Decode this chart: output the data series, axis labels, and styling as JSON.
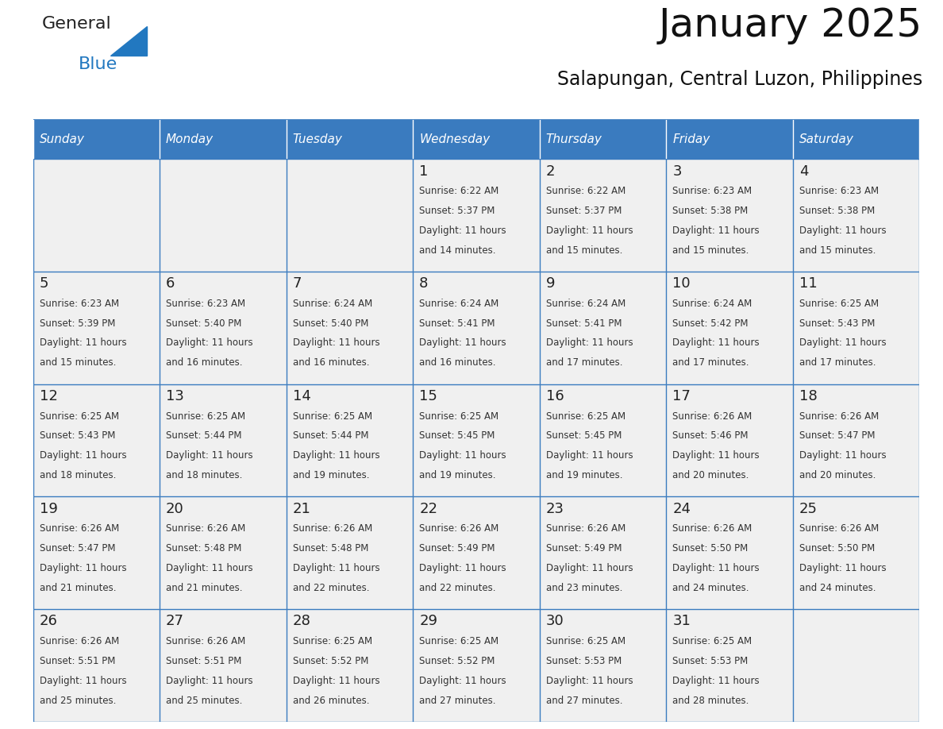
{
  "title": "January 2025",
  "subtitle": "Salapungan, Central Luzon, Philippines",
  "days_of_week": [
    "Sunday",
    "Monday",
    "Tuesday",
    "Wednesday",
    "Thursday",
    "Friday",
    "Saturday"
  ],
  "header_bg": "#3a7bbf",
  "header_text": "#ffffff",
  "cell_bg": "#f0f0f0",
  "cell_border": "#3a7bbf",
  "text_color": "#333333",
  "day_number_color": "#222222",
  "logo_general_color": "#222222",
  "logo_blue_color": "#2278c0",
  "calendar": [
    [
      null,
      null,
      null,
      {
        "day": 1,
        "sunrise": "6:22 AM",
        "sunset": "5:37 PM",
        "daylight": "11 hours",
        "daylight2": "and 14 minutes."
      },
      {
        "day": 2,
        "sunrise": "6:22 AM",
        "sunset": "5:37 PM",
        "daylight": "11 hours",
        "daylight2": "and 15 minutes."
      },
      {
        "day": 3,
        "sunrise": "6:23 AM",
        "sunset": "5:38 PM",
        "daylight": "11 hours",
        "daylight2": "and 15 minutes."
      },
      {
        "day": 4,
        "sunrise": "6:23 AM",
        "sunset": "5:38 PM",
        "daylight": "11 hours",
        "daylight2": "and 15 minutes."
      }
    ],
    [
      {
        "day": 5,
        "sunrise": "6:23 AM",
        "sunset": "5:39 PM",
        "daylight": "11 hours",
        "daylight2": "and 15 minutes."
      },
      {
        "day": 6,
        "sunrise": "6:23 AM",
        "sunset": "5:40 PM",
        "daylight": "11 hours",
        "daylight2": "and 16 minutes."
      },
      {
        "day": 7,
        "sunrise": "6:24 AM",
        "sunset": "5:40 PM",
        "daylight": "11 hours",
        "daylight2": "and 16 minutes."
      },
      {
        "day": 8,
        "sunrise": "6:24 AM",
        "sunset": "5:41 PM",
        "daylight": "11 hours",
        "daylight2": "and 16 minutes."
      },
      {
        "day": 9,
        "sunrise": "6:24 AM",
        "sunset": "5:41 PM",
        "daylight": "11 hours",
        "daylight2": "and 17 minutes."
      },
      {
        "day": 10,
        "sunrise": "6:24 AM",
        "sunset": "5:42 PM",
        "daylight": "11 hours",
        "daylight2": "and 17 minutes."
      },
      {
        "day": 11,
        "sunrise": "6:25 AM",
        "sunset": "5:43 PM",
        "daylight": "11 hours",
        "daylight2": "and 17 minutes."
      }
    ],
    [
      {
        "day": 12,
        "sunrise": "6:25 AM",
        "sunset": "5:43 PM",
        "daylight": "11 hours",
        "daylight2": "and 18 minutes."
      },
      {
        "day": 13,
        "sunrise": "6:25 AM",
        "sunset": "5:44 PM",
        "daylight": "11 hours",
        "daylight2": "and 18 minutes."
      },
      {
        "day": 14,
        "sunrise": "6:25 AM",
        "sunset": "5:44 PM",
        "daylight": "11 hours",
        "daylight2": "and 19 minutes."
      },
      {
        "day": 15,
        "sunrise": "6:25 AM",
        "sunset": "5:45 PM",
        "daylight": "11 hours",
        "daylight2": "and 19 minutes."
      },
      {
        "day": 16,
        "sunrise": "6:25 AM",
        "sunset": "5:45 PM",
        "daylight": "11 hours",
        "daylight2": "and 19 minutes."
      },
      {
        "day": 17,
        "sunrise": "6:26 AM",
        "sunset": "5:46 PM",
        "daylight": "11 hours",
        "daylight2": "and 20 minutes."
      },
      {
        "day": 18,
        "sunrise": "6:26 AM",
        "sunset": "5:47 PM",
        "daylight": "11 hours",
        "daylight2": "and 20 minutes."
      }
    ],
    [
      {
        "day": 19,
        "sunrise": "6:26 AM",
        "sunset": "5:47 PM",
        "daylight": "11 hours",
        "daylight2": "and 21 minutes."
      },
      {
        "day": 20,
        "sunrise": "6:26 AM",
        "sunset": "5:48 PM",
        "daylight": "11 hours",
        "daylight2": "and 21 minutes."
      },
      {
        "day": 21,
        "sunrise": "6:26 AM",
        "sunset": "5:48 PM",
        "daylight": "11 hours",
        "daylight2": "and 22 minutes."
      },
      {
        "day": 22,
        "sunrise": "6:26 AM",
        "sunset": "5:49 PM",
        "daylight": "11 hours",
        "daylight2": "and 22 minutes."
      },
      {
        "day": 23,
        "sunrise": "6:26 AM",
        "sunset": "5:49 PM",
        "daylight": "11 hours",
        "daylight2": "and 23 minutes."
      },
      {
        "day": 24,
        "sunrise": "6:26 AM",
        "sunset": "5:50 PM",
        "daylight": "11 hours",
        "daylight2": "and 24 minutes."
      },
      {
        "day": 25,
        "sunrise": "6:26 AM",
        "sunset": "5:50 PM",
        "daylight": "11 hours",
        "daylight2": "and 24 minutes."
      }
    ],
    [
      {
        "day": 26,
        "sunrise": "6:26 AM",
        "sunset": "5:51 PM",
        "daylight": "11 hours",
        "daylight2": "and 25 minutes."
      },
      {
        "day": 27,
        "sunrise": "6:26 AM",
        "sunset": "5:51 PM",
        "daylight": "11 hours",
        "daylight2": "and 25 minutes."
      },
      {
        "day": 28,
        "sunrise": "6:25 AM",
        "sunset": "5:52 PM",
        "daylight": "11 hours",
        "daylight2": "and 26 minutes."
      },
      {
        "day": 29,
        "sunrise": "6:25 AM",
        "sunset": "5:52 PM",
        "daylight": "11 hours",
        "daylight2": "and 27 minutes."
      },
      {
        "day": 30,
        "sunrise": "6:25 AM",
        "sunset": "5:53 PM",
        "daylight": "11 hours",
        "daylight2": "and 27 minutes."
      },
      {
        "day": 31,
        "sunrise": "6:25 AM",
        "sunset": "5:53 PM",
        "daylight": "11 hours",
        "daylight2": "and 28 minutes."
      },
      null
    ]
  ]
}
